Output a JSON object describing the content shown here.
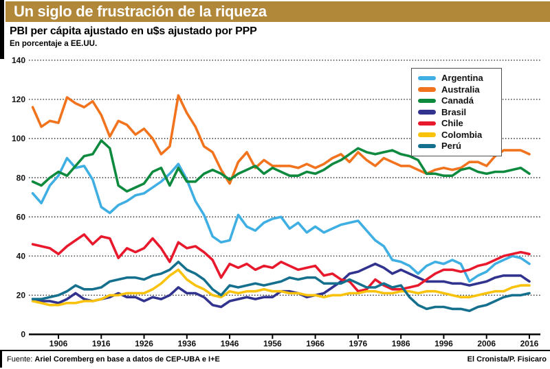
{
  "header": {
    "title": "Un siglo de frustración de la riqueza",
    "subtitle": "PBI per cápita ajustado en u$s ajustado por PPP",
    "note": "En porcentaje a EE.UU."
  },
  "footer": {
    "source_label": "Fuente:",
    "source": "Ariel Coremberg en base a datos de CEP-UBA e I+E",
    "credit": "El Cronista/P. Fisicaro"
  },
  "colors": {
    "title_bar": "#B1883A",
    "axis": "#111111",
    "grid": "#1a1a1a"
  },
  "chart_data": {
    "type": "line",
    "title": "PBI per cápita ajustado en u$s ajustado por PPP",
    "subtitle": "En porcentaje a EE.UU.",
    "xlabel": "",
    "ylabel": "",
    "ylim": [
      0,
      140
    ],
    "xlim": [
      1899,
      2018.5
    ],
    "y_ticks": [
      0,
      20,
      40,
      60,
      80,
      100,
      120,
      140
    ],
    "x_ticks": [
      1906,
      1916,
      1926,
      1936,
      1946,
      1956,
      1966,
      1976,
      1986,
      1996,
      2006,
      2016
    ],
    "grid": "dotted-horizontal",
    "legend_position": "upper-right",
    "x": [
      1900,
      1902,
      1904,
      1906,
      1908,
      1910,
      1912,
      1914,
      1916,
      1918,
      1920,
      1922,
      1924,
      1926,
      1928,
      1930,
      1932,
      1934,
      1936,
      1938,
      1940,
      1942,
      1944,
      1946,
      1948,
      1950,
      1952,
      1954,
      1956,
      1958,
      1960,
      1962,
      1964,
      1966,
      1968,
      1970,
      1972,
      1974,
      1976,
      1978,
      1980,
      1982,
      1984,
      1986,
      1988,
      1990,
      1992,
      1994,
      1996,
      1998,
      2000,
      2002,
      2004,
      2006,
      2008,
      2010,
      2012,
      2014,
      2016
    ],
    "series": [
      {
        "name": "Argentina",
        "color": "#3FAFE3",
        "values": [
          72,
          67,
          76,
          81,
          90,
          85,
          86,
          79,
          65,
          62,
          66,
          68,
          71,
          72,
          75,
          78,
          82,
          87,
          79,
          68,
          61,
          50,
          47,
          48,
          61,
          55,
          53,
          57,
          59,
          60,
          54,
          57,
          52,
          55,
          52,
          54,
          56,
          57,
          58,
          53,
          48,
          45,
          38,
          37,
          35,
          31,
          35,
          37,
          36,
          38,
          36,
          27,
          30,
          32,
          36,
          38,
          40,
          39,
          36
        ]
      },
      {
        "name": "Australia",
        "color": "#F2731D",
        "values": [
          116,
          106,
          109,
          108,
          121,
          118,
          116,
          119,
          112,
          101,
          109,
          107,
          102,
          105,
          100,
          92,
          96,
          122,
          113,
          106,
          96,
          93,
          84,
          77,
          88,
          93,
          85,
          89,
          86,
          86,
          86,
          85,
          87,
          85,
          87,
          90,
          92,
          88,
          93,
          89,
          86,
          90,
          88,
          86,
          86,
          84,
          82,
          84,
          85,
          84,
          85,
          88,
          88,
          86,
          91,
          94,
          94,
          94,
          92
        ]
      },
      {
        "name": "Canadá",
        "color": "#0E8A3F",
        "values": [
          78,
          76,
          80,
          83,
          81,
          86,
          91,
          92,
          99,
          95,
          76,
          73,
          75,
          77,
          83,
          85,
          76,
          85,
          78,
          78,
          82,
          84,
          82,
          79,
          82,
          84,
          86,
          82,
          85,
          83,
          81,
          81,
          83,
          82,
          84,
          87,
          89,
          92,
          95,
          93,
          92,
          93,
          94,
          92,
          91,
          89,
          82,
          82,
          81,
          81,
          84,
          85,
          83,
          82,
          83,
          83,
          84,
          85,
          82
        ]
      },
      {
        "name": "Brasil",
        "color": "#31338F",
        "values": [
          18,
          17,
          17,
          16,
          18,
          21,
          18,
          17,
          18,
          19,
          21,
          19,
          19,
          17,
          19,
          18,
          20,
          24,
          21,
          21,
          19,
          15,
          14,
          17,
          18,
          19,
          18,
          19,
          19,
          22,
          22,
          21,
          19,
          20,
          21,
          24,
          27,
          31,
          32,
          34,
          36,
          34,
          31,
          33,
          31,
          29,
          27,
          27,
          27,
          26,
          26,
          25,
          26,
          27,
          29,
          30,
          30,
          30,
          27
        ]
      },
      {
        "name": "Chile",
        "color": "#E8192C",
        "values": [
          46,
          45,
          44,
          41,
          45,
          48,
          51,
          46,
          50,
          49,
          39,
          44,
          42,
          44,
          49,
          44,
          37,
          47,
          44,
          45,
          42,
          38,
          29,
          36,
          34,
          36,
          33,
          35,
          34,
          37,
          35,
          33,
          34,
          35,
          30,
          31,
          28,
          27,
          22,
          23,
          28,
          25,
          23,
          23,
          24,
          25,
          28,
          31,
          33,
          33,
          32,
          33,
          35,
          36,
          38,
          40,
          41,
          42,
          41
        ]
      },
      {
        "name": "Colombia",
        "color": "#F9C20D",
        "values": [
          17,
          16,
          15,
          15,
          16,
          16,
          17,
          17,
          18,
          20,
          20,
          21,
          21,
          21,
          23,
          26,
          30,
          33,
          28,
          25,
          23,
          20,
          19,
          22,
          21,
          22,
          22,
          23,
          22,
          22,
          21,
          21,
          20,
          20,
          19,
          20,
          20,
          21,
          21,
          22,
          22,
          21,
          21,
          22,
          22,
          21,
          22,
          22,
          21,
          20,
          19,
          19,
          20,
          21,
          22,
          22,
          24,
          25,
          25
        ]
      },
      {
        "name": "Perú",
        "color": "#15708E",
        "values": [
          18,
          18,
          19,
          20,
          22,
          25,
          23,
          23,
          24,
          27,
          28,
          29,
          29,
          28,
          30,
          31,
          33,
          37,
          33,
          31,
          28,
          23,
          20,
          25,
          24,
          25,
          26,
          25,
          26,
          27,
          29,
          28,
          29,
          29,
          26,
          26,
          26,
          28,
          26,
          24,
          24,
          26,
          24,
          25,
          19,
          15,
          13,
          14,
          14,
          13,
          13,
          12,
          14,
          15,
          17,
          19,
          20,
          20,
          21
        ]
      }
    ]
  }
}
